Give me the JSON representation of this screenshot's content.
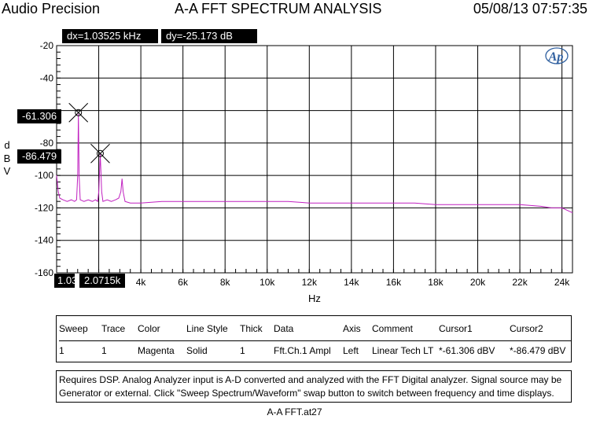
{
  "header": {
    "app_name": "Audio Precision",
    "title": "A-A FFT SPECTRUM ANALYSIS",
    "datetime": "05/08/13 07:57:35"
  },
  "readouts": {
    "dx": "dx=1.03525 kHz",
    "dy": "dy=-25.173  dB"
  },
  "cursor_values": {
    "cursor1_y": "-61.306",
    "cursor2_y": "-86.479",
    "cursor1_x": "1.035",
    "cursor2_x": "2.0715k"
  },
  "logo_text": "Ap",
  "colors": {
    "trace": "#c020c0",
    "grid": "#000000",
    "readout_bg": "#000000"
  },
  "chart_data": {
    "type": "line",
    "title": "A-A FFT SPECTRUM ANALYSIS",
    "xlabel": "Hz",
    "ylabel": "dBV",
    "xlim": [
      0,
      24500
    ],
    "ylim": [
      -160,
      -20
    ],
    "x_ticks": [
      {
        "v": 4000,
        "label": "4k"
      },
      {
        "v": 6000,
        "label": "6k"
      },
      {
        "v": 8000,
        "label": "8k"
      },
      {
        "v": 10000,
        "label": "10k"
      },
      {
        "v": 12000,
        "label": "12k"
      },
      {
        "v": 14000,
        "label": "14k"
      },
      {
        "v": 16000,
        "label": "16k"
      },
      {
        "v": 18000,
        "label": "18k"
      },
      {
        "v": 20000,
        "label": "20k"
      },
      {
        "v": 22000,
        "label": "22k"
      },
      {
        "v": 24000,
        "label": "24k"
      }
    ],
    "y_ticks": [
      {
        "v": -20,
        "label": "-20"
      },
      {
        "v": -40,
        "label": "-40"
      },
      {
        "v": -80,
        "label": "-80"
      },
      {
        "v": -100,
        "label": "-100"
      },
      {
        "v": -120,
        "label": "-120"
      },
      {
        "v": -140,
        "label": "-140"
      },
      {
        "v": -160,
        "label": "-160"
      }
    ],
    "grid": true,
    "series": [
      {
        "name": "Fft.Ch.1 Ampl",
        "color": "#c020c0",
        "x": [
          0,
          80,
          150,
          300,
          500,
          700,
          850,
          950,
          1000,
          1035,
          1070,
          1120,
          1300,
          1500,
          1700,
          1850,
          1950,
          2000,
          2071,
          2140,
          2200,
          2400,
          2600,
          2800,
          2950,
          3050,
          3106,
          3160,
          3250,
          3500,
          4000,
          5000,
          6000,
          7000,
          8000,
          9000,
          10000,
          11000,
          12000,
          13000,
          14000,
          15000,
          16000,
          17000,
          18000,
          19000,
          20000,
          21000,
          22000,
          23000,
          23500,
          24000,
          24500
        ],
        "y": [
          -100,
          -110,
          -114,
          -115,
          -116,
          -115,
          -116,
          -115,
          -100,
          -62,
          -100,
          -115,
          -116,
          -115,
          -116,
          -115,
          -116,
          -110,
          -87,
          -110,
          -116,
          -115,
          -116,
          -115,
          -114,
          -110,
          -102,
          -110,
          -116,
          -117,
          -117,
          -116,
          -116,
          -116,
          -116,
          -116,
          -116,
          -116,
          -117,
          -117,
          -117,
          -117,
          -117,
          -117,
          -118,
          -118,
          -118,
          -118,
          -118,
          -119,
          -120,
          -120,
          -123
        ]
      }
    ],
    "cursors": [
      {
        "x": 1035,
        "y": -61.306
      },
      {
        "x": 2071.5,
        "y": -86.479
      }
    ]
  },
  "legend": {
    "headers": [
      "Sweep",
      "Trace",
      "Color",
      "Line Style",
      "Thick",
      "Data",
      "Axis",
      "Comment",
      "Cursor1",
      "Cursor2"
    ],
    "rows": [
      [
        "1",
        "1",
        "Magenta",
        "Solid",
        "1",
        "Fft.Ch.1 Ampl",
        "Left",
        "Linear Tech LT",
        "*-61.306  dBV",
        "*-86.479  dBV"
      ]
    ]
  },
  "note": {
    "line1": "Requires DSP.  Analog Analyzer input is A-D converted and analyzed with the FFT Digital analyzer.  Signal source may be",
    "line2": "Generator or external.  Click \"Sweep Spectrum/Waveform\" swap button to switch between frequency and time displays."
  },
  "footer": "A-A FFT.at27"
}
